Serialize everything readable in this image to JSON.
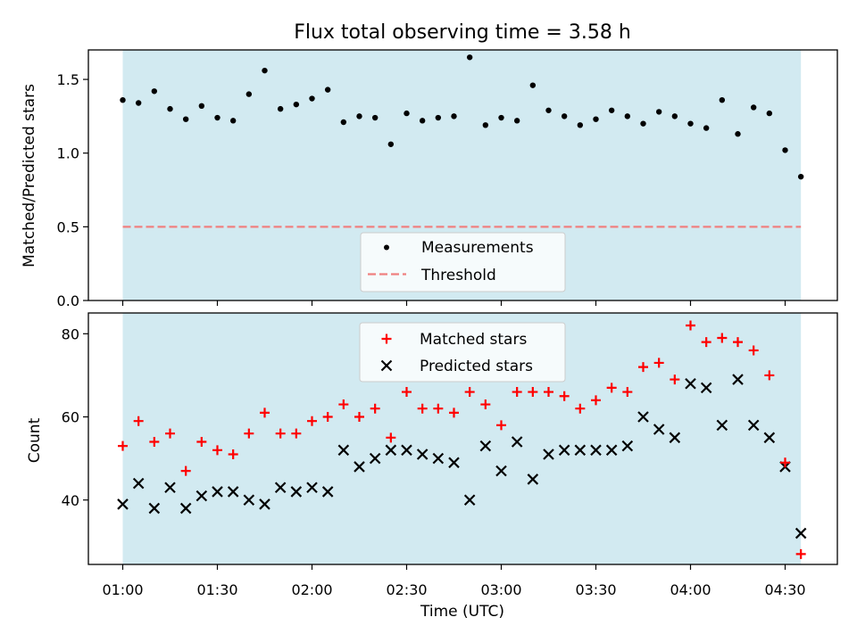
{
  "chart_data": [
    {
      "type": "scatter",
      "title": "Flux total observing time = 3.58 h",
      "xlabel": "",
      "ylabel": "Matched/Predicted stars",
      "ylim": [
        0,
        1.7
      ],
      "yticks": [
        "0.0",
        "0.5",
        "1.0",
        "1.5"
      ],
      "threshold": 0.5,
      "shaded_span": [
        "01:00",
        "04:35"
      ],
      "legend_position": "lower center",
      "series": [
        {
          "name": "Measurements",
          "color": "#000000",
          "marker": "dot",
          "x": [
            "01:00",
            "01:05",
            "01:10",
            "01:15",
            "01:20",
            "01:25",
            "01:30",
            "01:35",
            "01:40",
            "01:45",
            "01:50",
            "01:55",
            "02:00",
            "02:05",
            "02:10",
            "02:15",
            "02:20",
            "02:25",
            "02:30",
            "02:35",
            "02:40",
            "02:45",
            "02:50",
            "02:55",
            "03:00",
            "03:05",
            "03:10",
            "03:15",
            "03:20",
            "03:25",
            "03:30",
            "03:35",
            "03:40",
            "03:45",
            "03:50",
            "03:55",
            "04:00",
            "04:05",
            "04:10",
            "04:15",
            "04:20",
            "04:25",
            "04:30",
            "04:35"
          ],
          "y": [
            1.36,
            1.34,
            1.42,
            1.3,
            1.23,
            1.32,
            1.24,
            1.22,
            1.4,
            1.56,
            1.3,
            1.33,
            1.37,
            1.43,
            1.21,
            1.25,
            1.24,
            1.06,
            1.27,
            1.22,
            1.24,
            1.25,
            1.65,
            1.19,
            1.24,
            1.22,
            1.46,
            1.29,
            1.25,
            1.19,
            1.23,
            1.29,
            1.25,
            1.2,
            1.28,
            1.25,
            1.2,
            1.17,
            1.36,
            1.13,
            1.31,
            1.27,
            1.02,
            0.84
          ]
        },
        {
          "name": "Threshold",
          "color": "#f08080",
          "marker": "dashed-line"
        }
      ]
    },
    {
      "type": "scatter",
      "title": "",
      "xlabel": "Time (UTC)",
      "ylabel": "Count",
      "ylim": [
        24.5,
        85
      ],
      "yticks": [
        "40",
        "60",
        "80"
      ],
      "xticks": [
        "01:00",
        "01:30",
        "02:00",
        "02:30",
        "03:00",
        "03:30",
        "04:00",
        "04:30"
      ],
      "shaded_span": [
        "01:00",
        "04:35"
      ],
      "legend_position": "upper center",
      "series": [
        {
          "name": "Matched stars",
          "color": "#ff0000",
          "marker": "plus",
          "x": [
            "01:00",
            "01:05",
            "01:10",
            "01:15",
            "01:20",
            "01:25",
            "01:30",
            "01:35",
            "01:40",
            "01:45",
            "01:50",
            "01:55",
            "02:00",
            "02:05",
            "02:10",
            "02:15",
            "02:20",
            "02:25",
            "02:30",
            "02:35",
            "02:40",
            "02:45",
            "02:50",
            "02:55",
            "03:00",
            "03:05",
            "03:10",
            "03:15",
            "03:20",
            "03:25",
            "03:30",
            "03:35",
            "03:40",
            "03:45",
            "03:50",
            "03:55",
            "04:00",
            "04:05",
            "04:10",
            "04:15",
            "04:20",
            "04:25",
            "04:30",
            "04:35"
          ],
          "y": [
            53,
            59,
            54,
            56,
            47,
            54,
            52,
            51,
            56,
            61,
            56,
            56,
            59,
            60,
            63,
            60,
            62,
            55,
            66,
            62,
            62,
            61,
            66,
            63,
            58,
            66,
            66,
            66,
            65,
            62,
            64,
            67,
            66,
            72,
            73,
            69,
            82,
            78,
            79,
            78,
            76,
            70,
            49,
            27
          ]
        },
        {
          "name": "Predicted stars",
          "color": "#000000",
          "marker": "x",
          "x": [
            "01:00",
            "01:05",
            "01:10",
            "01:15",
            "01:20",
            "01:25",
            "01:30",
            "01:35",
            "01:40",
            "01:45",
            "01:50",
            "01:55",
            "02:00",
            "02:05",
            "02:10",
            "02:15",
            "02:20",
            "02:25",
            "02:30",
            "02:35",
            "02:40",
            "02:45",
            "02:50",
            "02:55",
            "03:00",
            "03:05",
            "03:10",
            "03:15",
            "03:20",
            "03:25",
            "03:30",
            "03:35",
            "03:40",
            "03:45",
            "03:50",
            "03:55",
            "04:00",
            "04:05",
            "04:10",
            "04:15",
            "04:20",
            "04:25",
            "04:30",
            "04:35"
          ],
          "y": [
            39,
            44,
            38,
            43,
            38,
            41,
            42,
            42,
            40,
            39,
            43,
            42,
            43,
            42,
            52,
            48,
            50,
            52,
            52,
            51,
            50,
            49,
            40,
            53,
            47,
            54,
            45,
            51,
            52,
            52,
            52,
            52,
            53,
            60,
            57,
            55,
            68,
            67,
            58,
            69,
            58,
            55,
            48,
            32
          ]
        }
      ]
    }
  ],
  "colors": {
    "span_fill": "#add8e6",
    "legend_bg": "#ffffff"
  }
}
